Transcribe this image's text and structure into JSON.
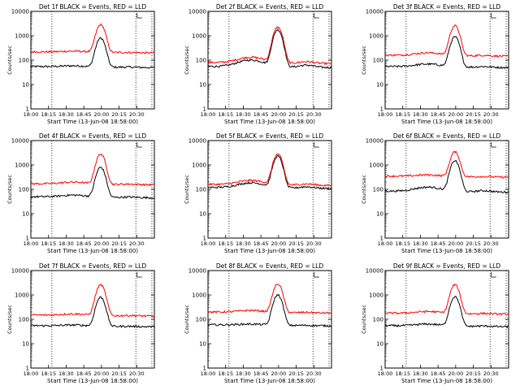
{
  "figure": {
    "ylabel": "Counts/sec",
    "xlabel": "Start Time (13-Jun-08 18:58:00)",
    "time_ticks": [
      "18:00",
      "18:15",
      "18:30",
      "18:45",
      "20:00",
      "20:15",
      "20:30"
    ],
    "y_ticks": [
      "1",
      "10",
      "100",
      "1000",
      "10000"
    ],
    "legend_symbol": "L",
    "colors": {
      "events": "#000000",
      "lld": "#ff0000",
      "dotted": "#000000"
    }
  },
  "chart_data": [
    {
      "type": "line",
      "title": "Det 1f BLACK = Events, RED = LLD",
      "y_scale": "log",
      "ylim": [
        1,
        10000
      ],
      "series": [
        {
          "name": "Events",
          "base": 55,
          "peak": 800,
          "hump": 0.1
        },
        {
          "name": "LLD",
          "base": 220,
          "peak": 2800,
          "hump": 0.1
        }
      ]
    },
    {
      "type": "line",
      "title": "Det 2f BLACK = Events, RED = LLD",
      "y_scale": "log",
      "ylim": [
        1,
        10000
      ],
      "series": [
        {
          "name": "Events",
          "base": 55,
          "peak": 1800,
          "hump": 0.9
        },
        {
          "name": "LLD",
          "base": 80,
          "peak": 2300,
          "hump": 0.7
        }
      ]
    },
    {
      "type": "line",
      "title": "Det 3f BLACK = Events, RED = LLD",
      "y_scale": "log",
      "ylim": [
        1,
        10000
      ],
      "series": [
        {
          "name": "Events",
          "base": 55,
          "peak": 900,
          "hump": 0.3
        },
        {
          "name": "LLD",
          "base": 160,
          "peak": 2600,
          "hump": 0.3
        }
      ]
    },
    {
      "type": "line",
      "title": "Det 4f BLACK = Events, RED = LLD",
      "y_scale": "log",
      "ylim": [
        1,
        10000
      ],
      "series": [
        {
          "name": "Events",
          "base": 50,
          "peak": 800,
          "hump": 0.2
        },
        {
          "name": "LLD",
          "base": 170,
          "peak": 2800,
          "hump": 0.2
        }
      ]
    },
    {
      "type": "line",
      "title": "Det 5f BLACK = Events, RED = LLD",
      "y_scale": "log",
      "ylim": [
        1,
        10000
      ],
      "series": [
        {
          "name": "Events",
          "base": 120,
          "peak": 2300,
          "hump": 0.6
        },
        {
          "name": "LLD",
          "base": 160,
          "peak": 2800,
          "hump": 0.5
        }
      ]
    },
    {
      "type": "line",
      "title": "Det 6f BLACK = Events, RED = LLD",
      "y_scale": "log",
      "ylim": [
        1,
        10000
      ],
      "series": [
        {
          "name": "Events",
          "base": 85,
          "peak": 1500,
          "hump": 0.5
        },
        {
          "name": "LLD",
          "base": 350,
          "peak": 3300,
          "hump": 0.15
        }
      ]
    },
    {
      "type": "line",
      "title": "Det 7f BLACK = Events, RED = LLD",
      "y_scale": "log",
      "ylim": [
        1,
        10000
      ],
      "series": [
        {
          "name": "Events",
          "base": 55,
          "peak": 800,
          "hump": 0.1
        },
        {
          "name": "LLD",
          "base": 150,
          "peak": 2600,
          "hump": 0.15
        }
      ]
    },
    {
      "type": "line",
      "title": "Det 8f BLACK = Events, RED = LLD",
      "y_scale": "log",
      "ylim": [
        1,
        10000
      ],
      "series": [
        {
          "name": "Events",
          "base": 60,
          "peak": 1000,
          "hump": 0.1
        },
        {
          "name": "LLD",
          "base": 200,
          "peak": 2800,
          "hump": 0.2
        }
      ]
    },
    {
      "type": "line",
      "title": "Det 9f BLACK = Events, RED = LLD",
      "y_scale": "log",
      "ylim": [
        1,
        10000
      ],
      "series": [
        {
          "name": "Events",
          "base": 55,
          "peak": 850,
          "hump": 0.2
        },
        {
          "name": "LLD",
          "base": 180,
          "peak": 2600,
          "hump": 0.2
        }
      ]
    }
  ]
}
